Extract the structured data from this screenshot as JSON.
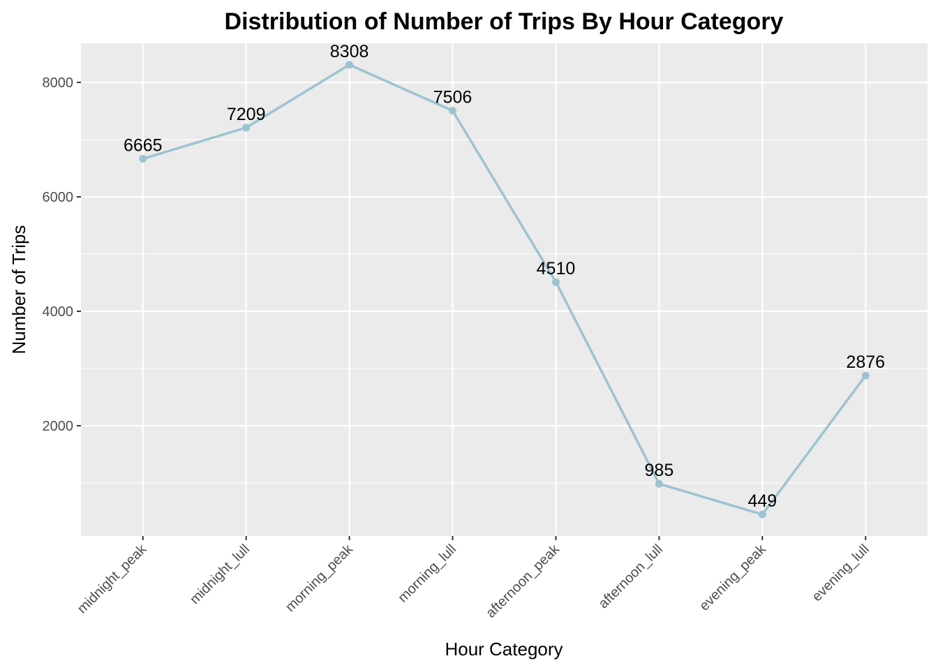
{
  "chart_data": {
    "type": "line",
    "title": "Distribution of Number of Trips By Hour Category",
    "xlabel": "Hour Category",
    "ylabel": "Number of Trips",
    "categories": [
      "midnight_peak",
      "midnight_lull",
      "morning_peak",
      "morning_lull",
      "afternoon_peak",
      "afternoon_lull",
      "evening_peak",
      "evening_lull"
    ],
    "series": [
      {
        "values": [
          6665,
          7209,
          8308,
          7506,
          4510,
          985,
          449,
          2876
        ]
      }
    ],
    "data_labels": [
      "6665",
      "7209",
      "8308",
      "7506",
      "4510",
      "985",
      "449",
      "2876"
    ],
    "yticks": [
      2000,
      4000,
      6000,
      8000
    ],
    "ytick_labels": [
      "2000",
      "4000",
      "6000",
      "8000"
    ],
    "ylim": [
      73,
      8684
    ],
    "grid": true,
    "line_color": "#9DC3D1",
    "panel_color": "#EBEBEB",
    "grid_color": "#FFFFFF"
  }
}
